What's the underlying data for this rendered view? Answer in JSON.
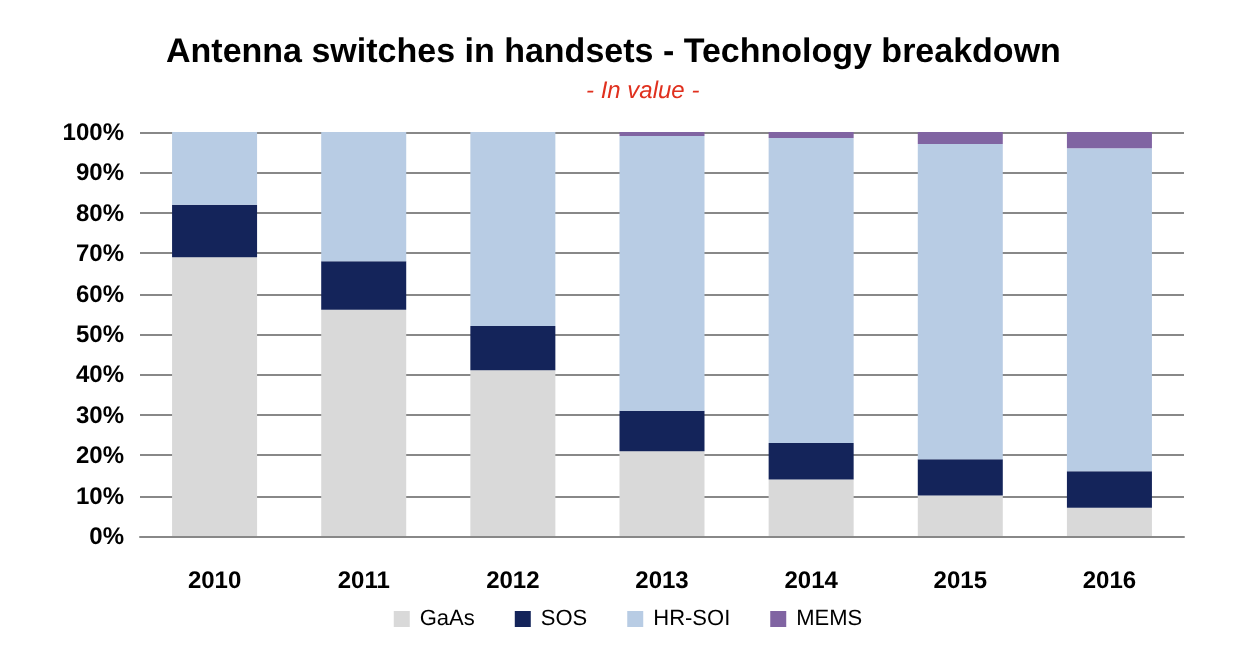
{
  "chart_data": {
    "type": "bar",
    "title": "Antenna switches in handsets - Technology breakdown",
    "subtitle": "- In value -",
    "stacked": true,
    "categories": [
      "2010",
      "2011",
      "2012",
      "2013",
      "2014",
      "2015",
      "2016"
    ],
    "series": [
      {
        "name": "GaAs",
        "color": "#d9d9d9",
        "values": [
          69,
          56,
          41,
          21,
          14,
          10,
          7
        ]
      },
      {
        "name": "SOS",
        "color": "#14245a",
        "values": [
          13,
          12,
          11,
          10,
          9,
          9,
          9
        ]
      },
      {
        "name": "HR-SOI",
        "color": "#b8cce4",
        "values": [
          18,
          32,
          48,
          68,
          75.5,
          78,
          80
        ]
      },
      {
        "name": "MEMS",
        "color": "#8064a2",
        "values": [
          0,
          0,
          0,
          1,
          1.5,
          3,
          4
        ]
      }
    ],
    "ylim": [
      0,
      100
    ],
    "yticks": [
      {
        "value": 0,
        "label": "0%"
      },
      {
        "value": 10,
        "label": "10%"
      },
      {
        "value": 20,
        "label": "20%"
      },
      {
        "value": 30,
        "label": "30%"
      },
      {
        "value": 40,
        "label": "40%"
      },
      {
        "value": 50,
        "label": "50%"
      },
      {
        "value": 60,
        "label": "60%"
      },
      {
        "value": 70,
        "label": "70%"
      },
      {
        "value": 80,
        "label": "80%"
      },
      {
        "value": 90,
        "label": "90%"
      },
      {
        "value": 100,
        "label": "100%"
      }
    ],
    "grid": "y",
    "legend": "bottom"
  }
}
